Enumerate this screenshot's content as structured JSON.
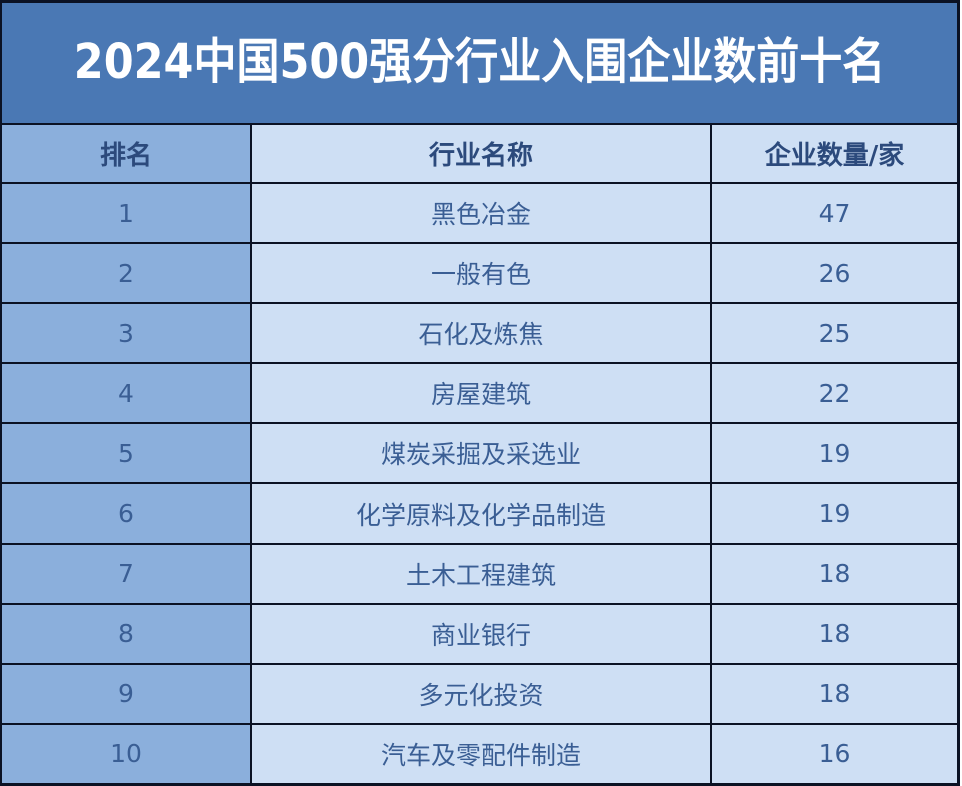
{
  "chart_data": {
    "type": "table",
    "title": "2024中国500强分行业入围企业数前十名",
    "columns": [
      "排名",
      "行业名称",
      "企业数量/家"
    ],
    "rows": [
      [
        "1",
        "黑色冶金",
        "47"
      ],
      [
        "2",
        "一般有色",
        "26"
      ],
      [
        "3",
        "石化及炼焦",
        "25"
      ],
      [
        "4",
        "房屋建筑",
        "22"
      ],
      [
        "5",
        "煤炭采掘及采选业",
        "19"
      ],
      [
        "6",
        "化学原料及化学品制造",
        "19"
      ],
      [
        "7",
        "土木工程建筑",
        "18"
      ],
      [
        "8",
        "商业银行",
        "18"
      ],
      [
        "9",
        "多元化投资",
        "18"
      ],
      [
        "10",
        "汽车及零配件制造",
        "16"
      ]
    ]
  },
  "colors": {
    "title_bg": "#4A78B4",
    "rank_column_bg": "#8BAFDC",
    "cell_bg": "#CEDFF4",
    "border": "#0B1224",
    "title_text": "#FFFFFF",
    "header_text": "#2C4A7C",
    "cell_text": "#3A5E94"
  }
}
